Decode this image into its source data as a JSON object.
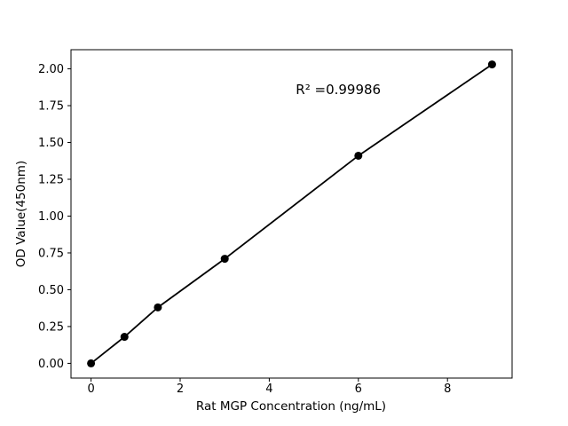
{
  "figure": {
    "background_color": "#ffffff",
    "text_color": "#000000"
  },
  "chart_data": {
    "type": "line",
    "title": "",
    "xlabel": "Rat MGP Concentration (ng/mL)",
    "ylabel": "OD Value(450nm)",
    "x": [
      0,
      0.75,
      1.5,
      3,
      6,
      9
    ],
    "y": [
      0.0,
      0.18,
      0.38,
      0.71,
      1.41,
      2.03
    ],
    "series_name": "standard-curve",
    "xlim": [
      -0.45,
      9.45
    ],
    "ylim": [
      -0.1,
      2.13
    ],
    "x_ticks": {
      "values": [
        0,
        2,
        4,
        6,
        8
      ],
      "labels": [
        "0",
        "2",
        "4",
        "6",
        "8"
      ]
    },
    "y_ticks": {
      "values": [
        0.0,
        0.25,
        0.5,
        0.75,
        1.0,
        1.25,
        1.5,
        1.75,
        2.0
      ],
      "labels": [
        "0.00",
        "0.25",
        "0.50",
        "0.75",
        "1.00",
        "1.25",
        "1.50",
        "1.75",
        "2.00"
      ]
    },
    "annotation": {
      "text": "R² =0.99986",
      "x": 5.55,
      "y": 1.86
    },
    "grid": false,
    "legend": null,
    "line_color": "#000000",
    "marker_color": "#000000",
    "marker_size": 4.5,
    "line_width": 1.8
  }
}
